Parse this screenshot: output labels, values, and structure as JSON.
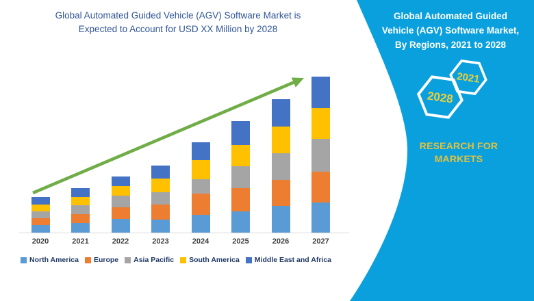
{
  "chart_panel": {
    "title": "Global Automated Guided Vehicle (AGV) Software Market is\nExpected to Account for USD XX Million by 2028",
    "title_color": "#2F5496"
  },
  "chart_data": {
    "type": "bar",
    "stacked": true,
    "title": "Global Automated Guided Vehicle (AGV) Software Market is Expected to Account for USD XX Million by 2028",
    "categories": [
      "2020",
      "2021",
      "2022",
      "2023",
      "2024",
      "2025",
      "2026",
      "2027"
    ],
    "series": [
      {
        "name": "North America",
        "color": "#5B9BD5",
        "values": [
          11,
          14,
          20,
          19,
          26,
          31,
          39,
          44
        ]
      },
      {
        "name": "Europe",
        "color": "#ED7D31",
        "values": [
          10,
          13,
          17,
          22,
          31,
          34,
          38,
          45
        ]
      },
      {
        "name": "Asia Pacific",
        "color": "#A5A5A5",
        "values": [
          10,
          13,
          17,
          18,
          21,
          32,
          39,
          48
        ]
      },
      {
        "name": "South America",
        "color": "#FFC000",
        "values": [
          10,
          12,
          14,
          20,
          28,
          31,
          39,
          45
        ]
      },
      {
        "name": "Middle East and Africa",
        "color": "#4472C4",
        "values": [
          11,
          13,
          14,
          19,
          26,
          35,
          40,
          46
        ]
      }
    ],
    "totals": [
      52,
      65,
      82,
      98,
      132,
      163,
      195,
      228
    ],
    "xlabel": "",
    "ylabel": "",
    "value_units": "relative units (chart shows USD XX Million, y-axis unlabeled)",
    "ylim": [
      0,
      250
    ],
    "grid": false,
    "y_axis_visible": false,
    "legend_position": "bottom",
    "trend_arrow": {
      "direction": "up",
      "color": "#70AD47"
    }
  },
  "sidebar": {
    "background_color": "#0AA0DE",
    "title": "Global Automated Guided\nVehicle (AGV) Software Market,\nBy Regions, 2021 to 2028",
    "title_color": "#FFFFFF",
    "hexagons": [
      {
        "label": "2028",
        "size": "large"
      },
      {
        "label": "2021",
        "size": "small"
      }
    ],
    "hexagon_outline_color": "#FFFFFF",
    "hexagon_label_color": "#EAD03C",
    "brand": "RESEARCH FOR\nMARKETS",
    "brand_color": "#E4C23C"
  }
}
